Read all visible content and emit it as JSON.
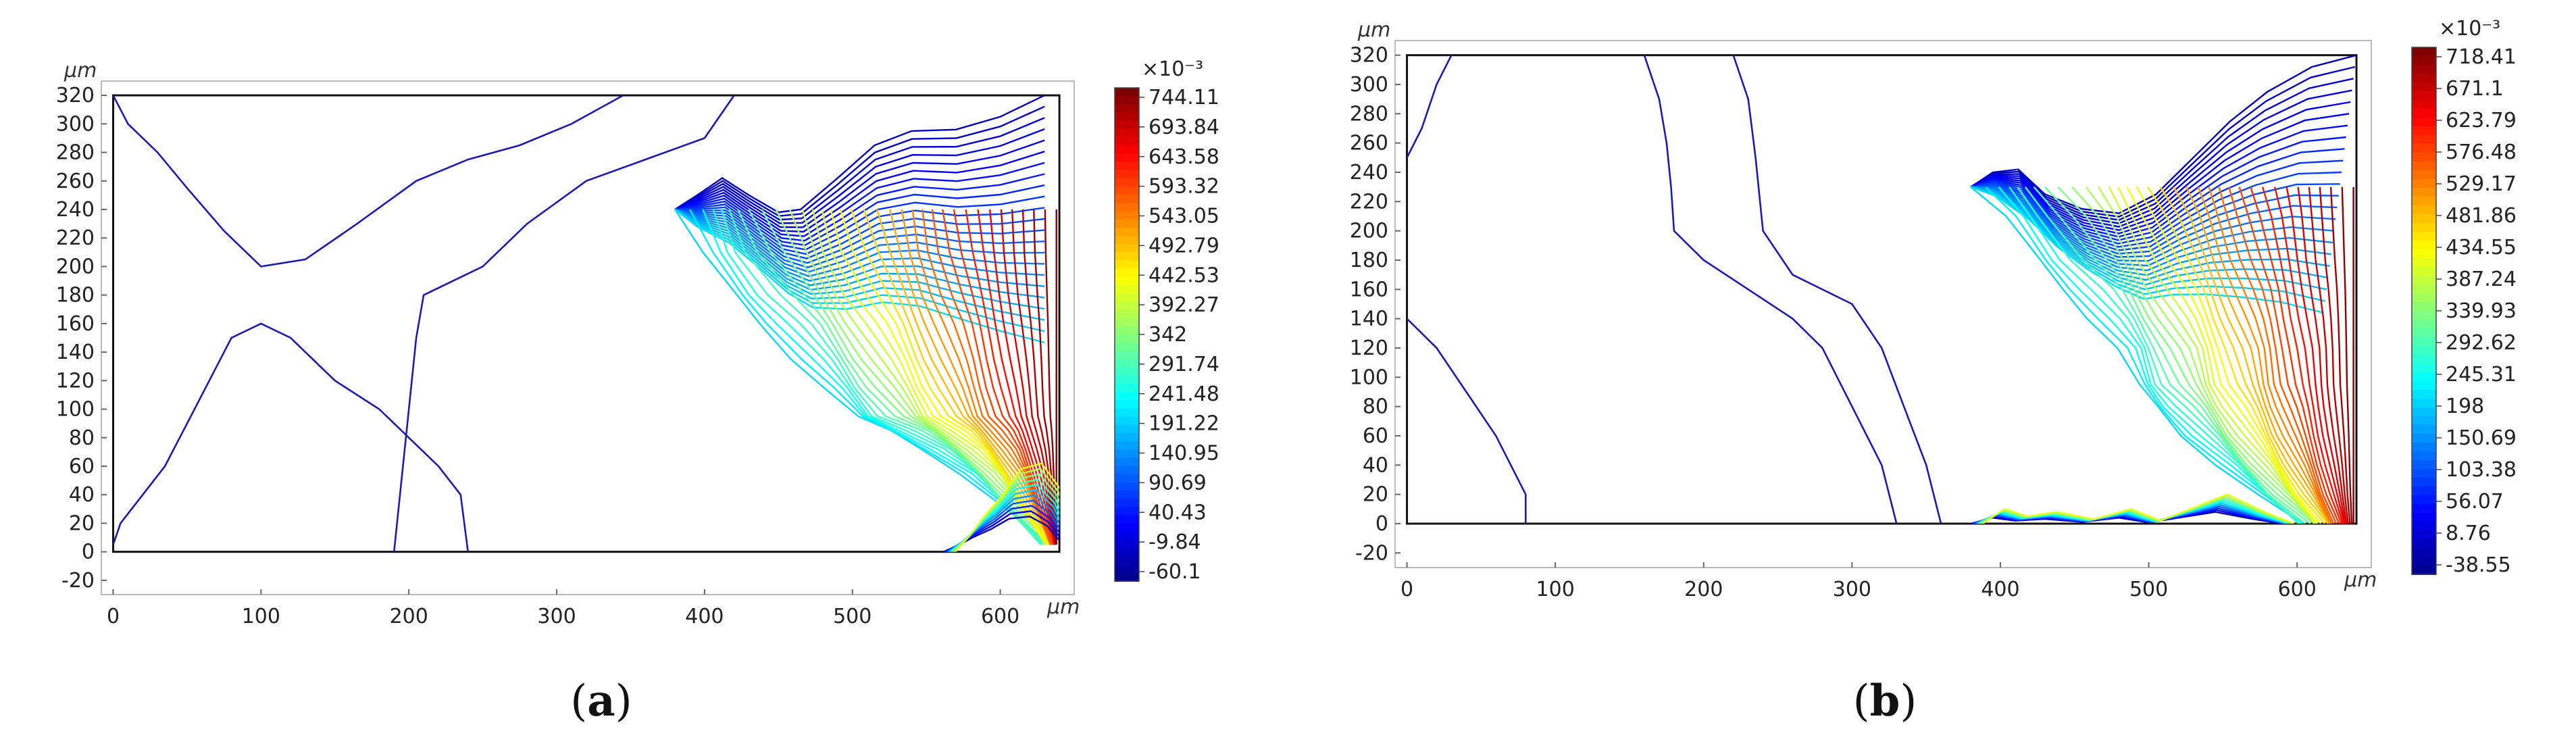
{
  "chart_data": [
    {
      "type": "contour",
      "panel_label": "a",
      "x_unit": "μm",
      "y_unit": "μm",
      "xlim": [
        -8,
        650
      ],
      "ylim": [
        -30,
        330
      ],
      "x_ticks": [
        0,
        100,
        200,
        300,
        400,
        500,
        600
      ],
      "y_ticks": [
        -20,
        0,
        20,
        40,
        60,
        80,
        100,
        120,
        140,
        160,
        180,
        200,
        220,
        240,
        260,
        280,
        300,
        320
      ],
      "domain": {
        "x": [
          0,
          640
        ],
        "y": [
          0,
          320
        ]
      },
      "colorbar": {
        "multiplier": "×10⁻³",
        "labels": [
          "744.11",
          "693.84",
          "643.58",
          "593.32",
          "543.05",
          "492.79",
          "442.53",
          "392.27",
          "342",
          "291.74",
          "241.48",
          "191.22",
          "140.95",
          "90.69",
          "40.43",
          "-9.84",
          "-60.1"
        ]
      },
      "contours": {
        "front": [
          [
            380,
            240
          ],
          [
            395,
            250
          ],
          [
            412,
            262
          ],
          [
            430,
            250
          ],
          [
            450,
            238
          ],
          [
            465,
            240
          ],
          [
            490,
            262
          ],
          [
            515,
            285
          ],
          [
            540,
            295
          ],
          [
            570,
            296
          ],
          [
            600,
            305
          ],
          [
            630,
            320
          ]
        ],
        "ridge": [
          [
            380,
            240
          ],
          [
            395,
            210
          ],
          [
            420,
            180
          ],
          [
            440,
            160
          ],
          [
            462,
            135
          ],
          [
            480,
            115
          ],
          [
            500,
            95
          ],
          [
            525,
            85
          ],
          [
            550,
            72
          ],
          [
            575,
            55
          ],
          [
            600,
            32
          ],
          [
            630,
            5
          ]
        ],
        "base": [
          [
            560,
            -2
          ],
          [
            572,
            12
          ],
          [
            582,
            26
          ],
          [
            594,
            40
          ],
          [
            606,
            58
          ],
          [
            620,
            62
          ],
          [
            632,
            45
          ],
          [
            640,
            20
          ]
        ],
        "left_blue": [
          [
            [
              0,
              320
            ],
            [
              10,
              300
            ],
            [
              30,
              280
            ],
            [
              50,
              255
            ],
            [
              75,
              225
            ],
            [
              100,
              200
            ],
            [
              130,
              205
            ],
            [
              165,
              230
            ],
            [
              205,
              260
            ],
            [
              240,
              275
            ],
            [
              275,
              285
            ],
            [
              310,
              300
            ],
            [
              345,
              320
            ]
          ],
          [
            [
              0,
              5
            ],
            [
              5,
              20
            ],
            [
              20,
              40
            ],
            [
              35,
              60
            ],
            [
              45,
              80
            ],
            [
              55,
              100
            ],
            [
              65,
              120
            ],
            [
              80,
              150
            ],
            [
              100,
              160
            ],
            [
              120,
              150
            ],
            [
              150,
              120
            ],
            [
              180,
              100
            ],
            [
              200,
              80
            ],
            [
              220,
              60
            ],
            [
              235,
              40
            ],
            [
              240,
              0
            ]
          ],
          [
            [
              190,
              0
            ],
            [
              200,
              100
            ],
            [
              205,
              150
            ],
            [
              210,
              180
            ],
            [
              250,
              200
            ],
            [
              280,
              230
            ],
            [
              320,
              260
            ],
            [
              360,
              275
            ],
            [
              400,
              290
            ],
            [
              420,
              320
            ]
          ]
        ]
      }
    },
    {
      "type": "contour",
      "panel_label": "b",
      "x_unit": "μm",
      "y_unit": "μm",
      "xlim": [
        -8,
        650
      ],
      "ylim": [
        -30,
        330
      ],
      "x_ticks": [
        0,
        100,
        200,
        300,
        400,
        500,
        600
      ],
      "y_ticks": [
        -20,
        0,
        20,
        40,
        60,
        80,
        100,
        120,
        140,
        160,
        180,
        200,
        220,
        240,
        260,
        280,
        300,
        320
      ],
      "domain": {
        "x": [
          0,
          640
        ],
        "y": [
          0,
          320
        ]
      },
      "colorbar": {
        "multiplier": "×10⁻³",
        "labels": [
          "718.41",
          "671.1",
          "623.79",
          "576.48",
          "529.17",
          "481.86",
          "434.55",
          "387.24",
          "339.93",
          "292.62",
          "245.31",
          "198",
          "150.69",
          "103.38",
          "56.07",
          "8.76",
          "-38.55"
        ]
      },
      "contours": {
        "front": [
          [
            380,
            230
          ],
          [
            395,
            240
          ],
          [
            412,
            242
          ],
          [
            430,
            225
          ],
          [
            455,
            215
          ],
          [
            480,
            212
          ],
          [
            505,
            225
          ],
          [
            530,
            250
          ],
          [
            555,
            275
          ],
          [
            580,
            295
          ],
          [
            610,
            312
          ],
          [
            640,
            320
          ]
        ],
        "ridge": [
          [
            380,
            230
          ],
          [
            400,
            210
          ],
          [
            425,
            180
          ],
          [
            445,
            160
          ],
          [
            462,
            140
          ],
          [
            478,
            120
          ],
          [
            490,
            95
          ],
          [
            505,
            80
          ],
          [
            525,
            60
          ],
          [
            548,
            40
          ],
          [
            572,
            20
          ],
          [
            600,
            0
          ]
        ],
        "base": [
          [
            380,
            0
          ],
          [
            395,
            10
          ],
          [
            410,
            5
          ],
          [
            430,
            8
          ],
          [
            455,
            3
          ],
          [
            480,
            10
          ],
          [
            500,
            2
          ],
          [
            525,
            12
          ],
          [
            545,
            20
          ],
          [
            570,
            8
          ],
          [
            590,
            0
          ]
        ],
        "left_blue": [
          [
            [
              0,
              250
            ],
            [
              10,
              270
            ],
            [
              20,
              300
            ],
            [
              30,
              320
            ]
          ],
          [
            [
              0,
              140
            ],
            [
              20,
              120
            ],
            [
              40,
              90
            ],
            [
              60,
              60
            ],
            [
              70,
              40
            ],
            [
              80,
              20
            ],
            [
              80,
              0
            ]
          ],
          [
            [
              160,
              320
            ],
            [
              170,
              290
            ],
            [
              175,
              260
            ],
            [
              178,
              230
            ],
            [
              180,
              200
            ],
            [
              200,
              180
            ],
            [
              230,
              160
            ],
            [
              260,
              140
            ],
            [
              280,
              120
            ],
            [
              300,
              80
            ],
            [
              320,
              40
            ],
            [
              330,
              0
            ]
          ],
          [
            [
              220,
              320
            ],
            [
              230,
              290
            ],
            [
              235,
              250
            ],
            [
              240,
              200
            ],
            [
              260,
              170
            ],
            [
              300,
              150
            ],
            [
              320,
              120
            ],
            [
              335,
              80
            ],
            [
              350,
              40
            ],
            [
              360,
              0
            ]
          ]
        ]
      }
    }
  ]
}
